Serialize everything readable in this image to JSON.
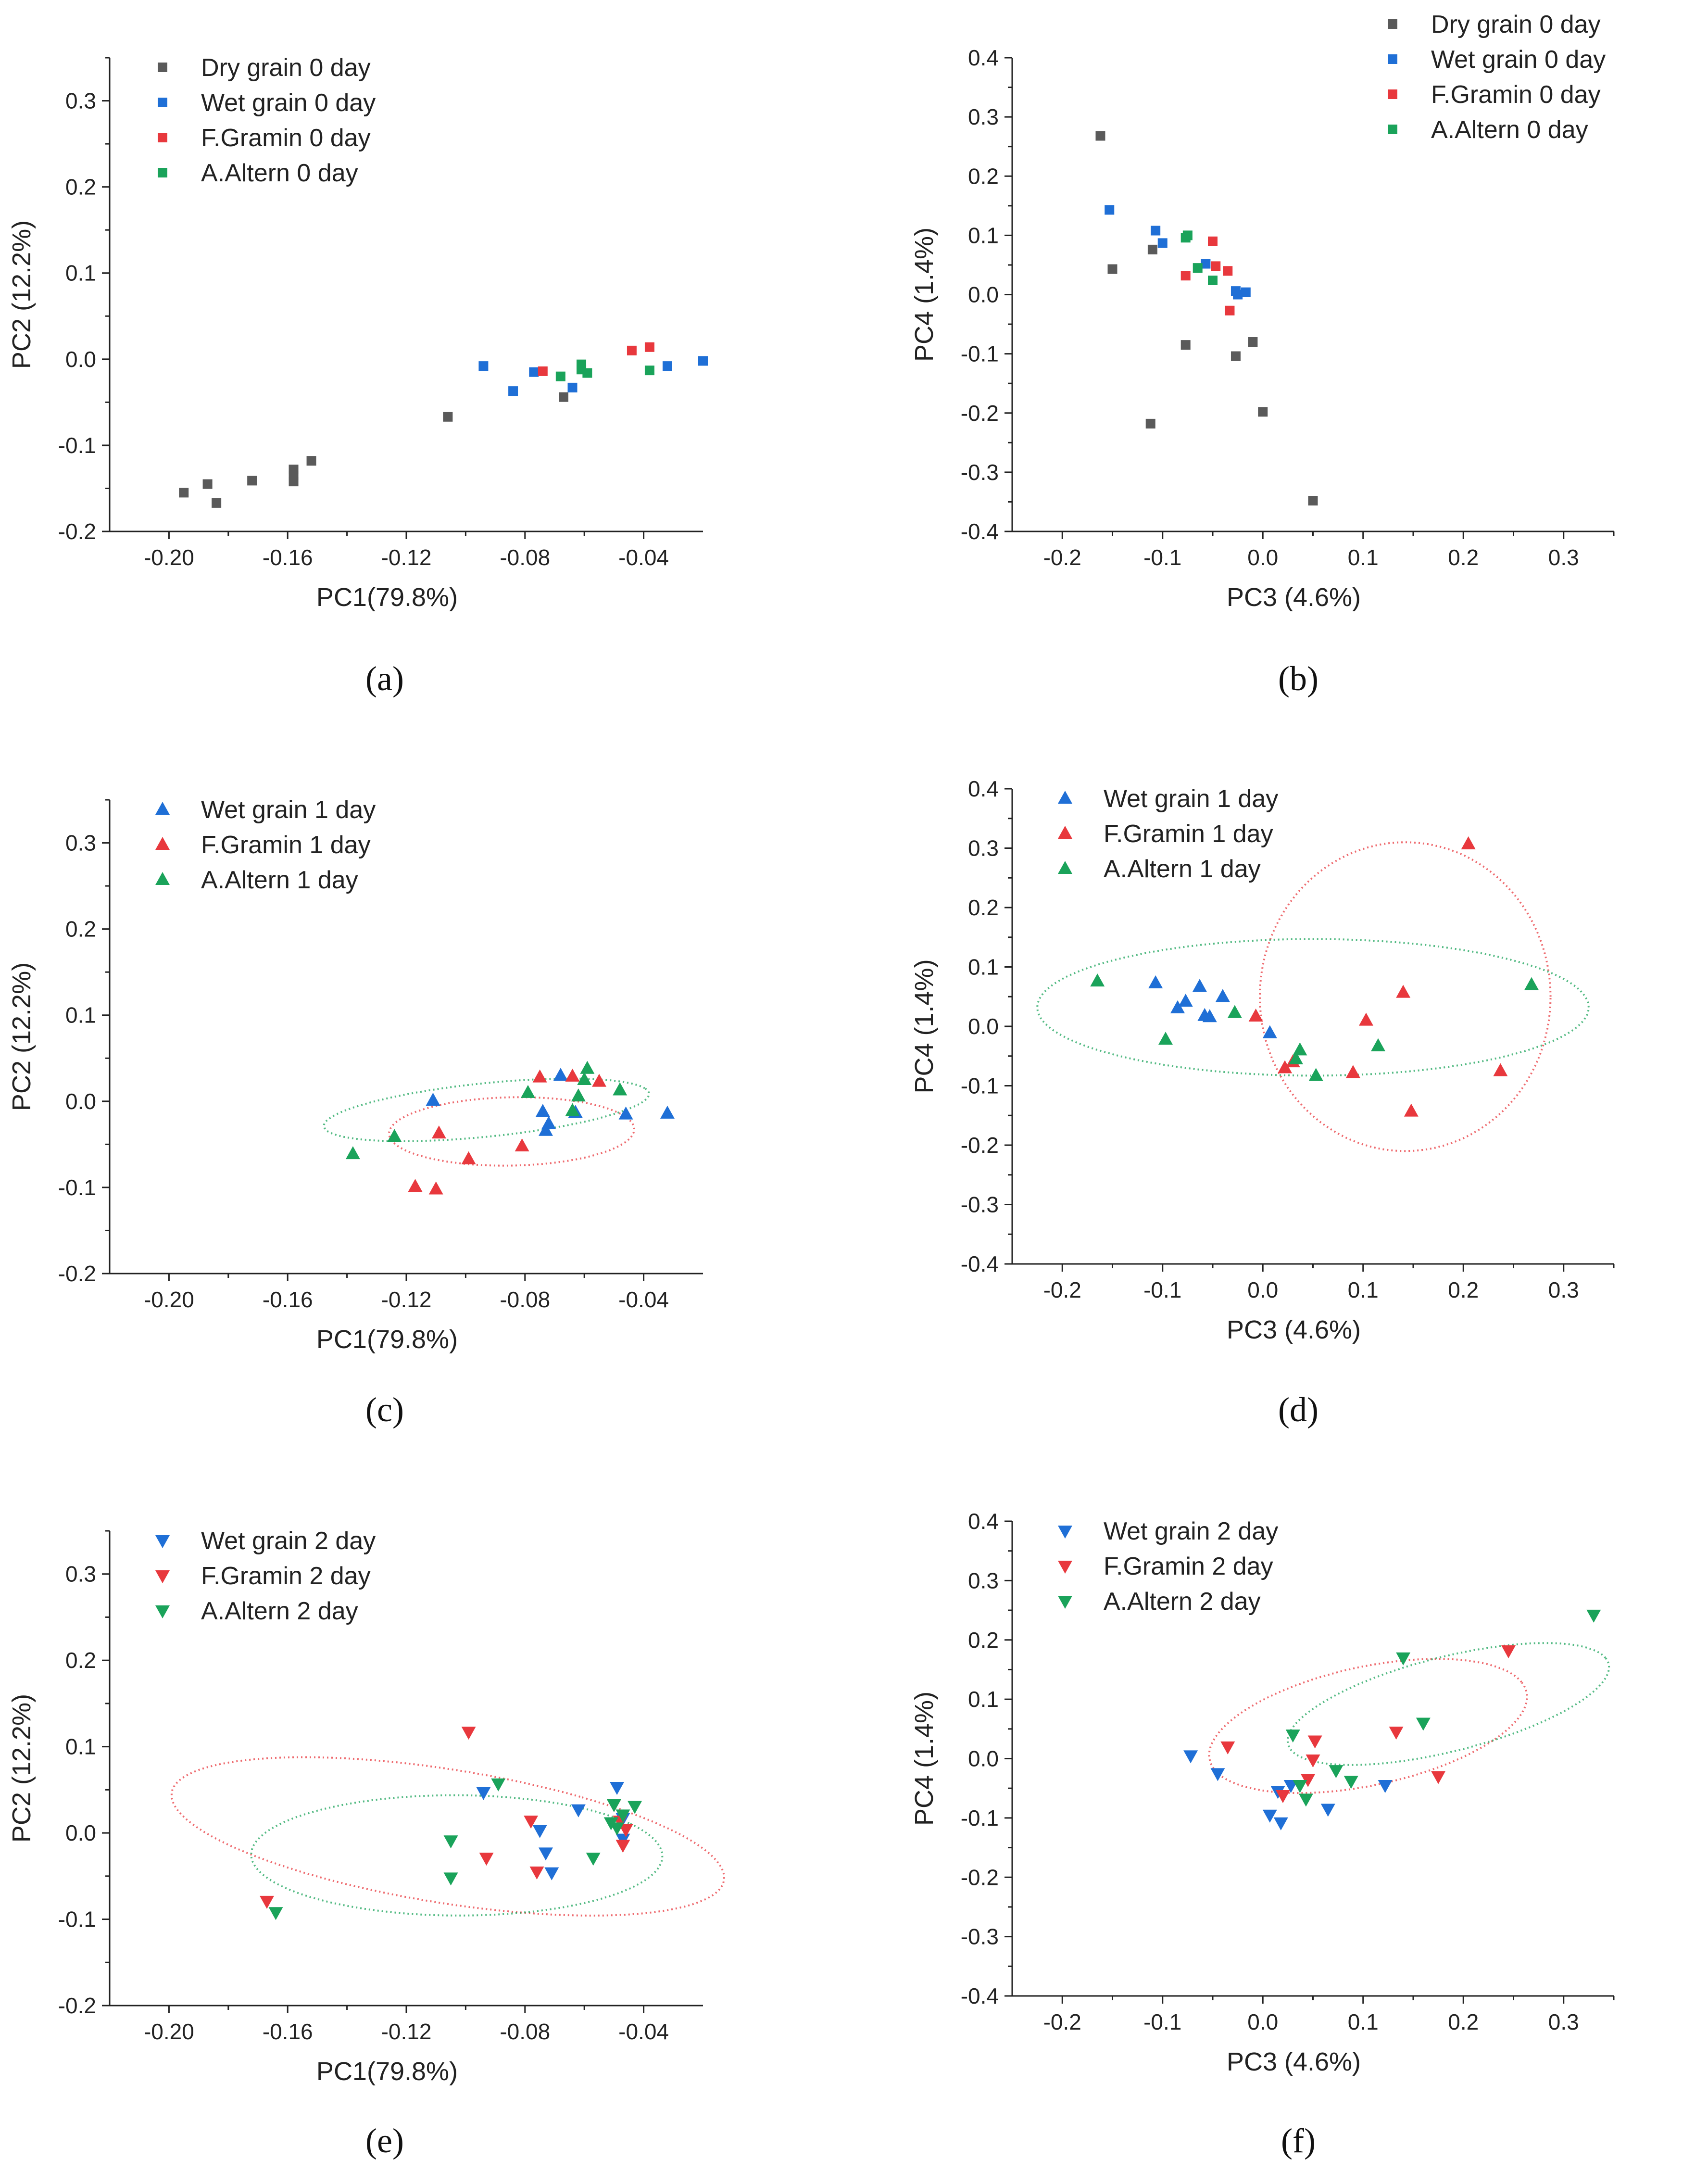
{
  "figure": {
    "panel_labels": [
      "(a)",
      "(b)",
      "(c)",
      "(d)",
      "(e)",
      "(f)"
    ]
  },
  "colors": {
    "dry": "#5a5a5a",
    "wet": "#1f6fd6",
    "fg": "#e8383d",
    "aa": "#1aa35a"
  },
  "chart_data": [
    {
      "id": "a",
      "type": "scatter",
      "marker": "square",
      "xlabel": "PC1(79.8%)",
      "ylabel": "PC2 (12.2%)",
      "xlim": [
        -0.22,
        -0.02
      ],
      "ylim": [
        -0.2,
        0.35
      ],
      "xticks": [
        -0.2,
        -0.16,
        -0.12,
        -0.08,
        -0.04
      ],
      "xtick_labels": [
        "-0.20",
        "-0.16",
        "-0.12",
        "-0.08",
        "-0.04"
      ],
      "yticks": [
        -0.2,
        -0.1,
        0.0,
        0.1,
        0.2,
        0.3
      ],
      "ytick_labels": [
        "-0.2",
        "-0.1",
        "0.0",
        "0.1",
        "0.2",
        "0.3"
      ],
      "legend_position": "top-left",
      "series": [
        {
          "name": "Dry grain 0 day",
          "color_key": "dry",
          "points": [
            [
              -0.195,
              -0.155
            ],
            [
              -0.187,
              -0.145
            ],
            [
              -0.184,
              -0.167
            ],
            [
              -0.172,
              -0.141
            ],
            [
              -0.158,
              -0.128
            ],
            [
              -0.158,
              -0.135
            ],
            [
              -0.158,
              -0.142
            ],
            [
              -0.152,
              -0.118
            ],
            [
              -0.106,
              -0.067
            ],
            [
              -0.067,
              -0.044
            ]
          ]
        },
        {
          "name": "Wet grain 0 day",
          "color_key": "wet",
          "points": [
            [
              -0.094,
              -0.008
            ],
            [
              -0.084,
              -0.037
            ],
            [
              -0.077,
              -0.015
            ],
            [
              -0.064,
              -0.033
            ],
            [
              -0.032,
              -0.008
            ],
            [
              -0.02,
              -0.002
            ]
          ]
        },
        {
          "name": "F.Gramin 0 day",
          "color_key": "fg",
          "points": [
            [
              -0.074,
              -0.014
            ],
            [
              -0.044,
              0.01
            ],
            [
              -0.038,
              0.014
            ]
          ]
        },
        {
          "name": "A.Altern 0 day",
          "color_key": "aa",
          "points": [
            [
              -0.068,
              -0.02
            ],
            [
              -0.061,
              -0.006
            ],
            [
              -0.061,
              -0.012
            ],
            [
              -0.059,
              -0.016
            ],
            [
              -0.038,
              -0.013
            ]
          ]
        }
      ]
    },
    {
      "id": "b",
      "type": "scatter",
      "marker": "square",
      "xlabel": "PC3 (4.6%)",
      "ylabel": "PC4 (1.4%)",
      "xlim": [
        -0.25,
        0.35
      ],
      "ylim": [
        -0.4,
        0.4
      ],
      "xticks": [
        -0.2,
        -0.1,
        0.0,
        0.1,
        0.2,
        0.3
      ],
      "xtick_labels": [
        "-0.2",
        "-0.1",
        "0.0",
        "0.1",
        "0.2",
        "0.3"
      ],
      "yticks": [
        -0.4,
        -0.3,
        -0.2,
        -0.1,
        0.0,
        0.1,
        0.2,
        0.3,
        0.4
      ],
      "ytick_labels": [
        "-0.4",
        "-0.3",
        "-0.2",
        "-0.1",
        "0.0",
        "0.1",
        "0.2",
        "0.3",
        "0.4"
      ],
      "legend_position": "top-right",
      "series": [
        {
          "name": "Dry grain 0 day",
          "color_key": "dry",
          "points": [
            [
              -0.162,
              0.268
            ],
            [
              -0.15,
              0.043
            ],
            [
              -0.11,
              0.076
            ],
            [
              -0.112,
              -0.218
            ],
            [
              -0.077,
              -0.085
            ],
            [
              -0.027,
              -0.104
            ],
            [
              -0.01,
              -0.08
            ],
            [
              0.0,
              -0.198
            ],
            [
              0.05,
              -0.348
            ]
          ]
        },
        {
          "name": "Wet grain 0 day",
          "color_key": "wet",
          "points": [
            [
              -0.153,
              0.143
            ],
            [
              -0.107,
              0.108
            ],
            [
              -0.1,
              0.087
            ],
            [
              -0.057,
              0.052
            ],
            [
              -0.027,
              0.006
            ],
            [
              -0.025,
              0.0
            ],
            [
              -0.017,
              0.004
            ]
          ]
        },
        {
          "name": "F.Gramin 0 day",
          "color_key": "fg",
          "points": [
            [
              -0.077,
              0.032
            ],
            [
              -0.05,
              0.09
            ],
            [
              -0.047,
              0.048
            ],
            [
              -0.035,
              0.04
            ],
            [
              -0.033,
              -0.027
            ]
          ]
        },
        {
          "name": "A.Altern 0 day",
          "color_key": "aa",
          "points": [
            [
              -0.077,
              0.096
            ],
            [
              -0.075,
              0.1
            ],
            [
              -0.065,
              0.045
            ],
            [
              -0.05,
              0.024
            ]
          ]
        }
      ]
    },
    {
      "id": "c",
      "type": "scatter",
      "marker": "triangle-up",
      "xlabel": "PC1(79.8%)",
      "ylabel": "PC2 (12.2%)",
      "xlim": [
        -0.22,
        -0.02
      ],
      "ylim": [
        -0.2,
        0.35
      ],
      "xticks": [
        -0.2,
        -0.16,
        -0.12,
        -0.08,
        -0.04
      ],
      "xtick_labels": [
        "-0.20",
        "-0.16",
        "-0.12",
        "-0.08",
        "-0.04"
      ],
      "yticks": [
        -0.2,
        -0.1,
        0.0,
        0.1,
        0.2,
        0.3
      ],
      "ytick_labels": [
        "-0.2",
        "-0.1",
        "0.0",
        "0.1",
        "0.2",
        "0.3"
      ],
      "legend_position": "top-left",
      "series": [
        {
          "name": "Wet grain 1 day",
          "color_key": "wet",
          "points": [
            [
              -0.111,
              0.001
            ],
            [
              -0.074,
              -0.012
            ],
            [
              -0.073,
              -0.034
            ],
            [
              -0.072,
              -0.026
            ],
            [
              -0.068,
              0.03
            ],
            [
              -0.063,
              -0.013
            ],
            [
              -0.046,
              -0.015
            ],
            [
              -0.032,
              -0.014
            ]
          ]
        },
        {
          "name": "F.Gramin 1 day",
          "color_key": "fg",
          "points": [
            [
              -0.117,
              -0.099
            ],
            [
              -0.11,
              -0.102
            ],
            [
              -0.109,
              -0.037
            ],
            [
              -0.099,
              -0.067
            ],
            [
              -0.081,
              -0.052
            ],
            [
              -0.075,
              0.028
            ],
            [
              -0.064,
              0.029
            ],
            [
              -0.055,
              0.023
            ]
          ]
        },
        {
          "name": "A.Altern 1 day",
          "color_key": "aa",
          "points": [
            [
              -0.138,
              -0.061
            ],
            [
              -0.124,
              -0.041
            ],
            [
              -0.079,
              0.01
            ],
            [
              -0.064,
              -0.011
            ],
            [
              -0.062,
              0.006
            ],
            [
              -0.06,
              0.025
            ],
            [
              -0.059,
              0.038
            ],
            [
              -0.048,
              0.013
            ]
          ]
        }
      ],
      "ellipses": [
        {
          "color_key": "fg",
          "cx": -0.0845,
          "cy": -0.035,
          "rx": 0.042,
          "ry": 0.039,
          "rotation": 0.51
        },
        {
          "color_key": "aa",
          "cx": -0.093,
          "cy": -0.01,
          "rx": 0.059,
          "ry": 0.029,
          "rotation": 0.44
        }
      ]
    },
    {
      "id": "d",
      "type": "scatter",
      "marker": "triangle-up",
      "xlabel": "PC3 (4.6%)",
      "ylabel": "PC4 (1.4%)",
      "xlim": [
        -0.25,
        0.35
      ],
      "ylim": [
        -0.4,
        0.4
      ],
      "xticks": [
        -0.2,
        -0.1,
        0.0,
        0.1,
        0.2,
        0.3
      ],
      "xtick_labels": [
        "-0.2",
        "-0.1",
        "0.0",
        "0.1",
        "0.2",
        "0.3"
      ],
      "yticks": [
        -0.4,
        -0.3,
        -0.2,
        -0.1,
        0.0,
        0.1,
        0.2,
        0.3,
        0.4
      ],
      "ytick_labels": [
        "-0.4",
        "-0.3",
        "-0.2",
        "-0.1",
        "0.0",
        "0.1",
        "0.2",
        "0.3",
        "0.4"
      ],
      "legend_position": "top-left",
      "series": [
        {
          "name": "Wet grain 1 day",
          "color_key": "wet",
          "points": [
            [
              -0.107,
              0.073
            ],
            [
              -0.085,
              0.031
            ],
            [
              -0.077,
              0.042
            ],
            [
              -0.063,
              0.067
            ],
            [
              -0.058,
              0.018
            ],
            [
              -0.053,
              0.016
            ],
            [
              -0.04,
              0.05
            ],
            [
              0.007,
              -0.011
            ]
          ]
        },
        {
          "name": "F.Gramin 1 day",
          "color_key": "fg",
          "points": [
            [
              -0.007,
              0.017
            ],
            [
              0.022,
              -0.07
            ],
            [
              0.03,
              -0.06
            ],
            [
              0.09,
              -0.078
            ],
            [
              0.103,
              0.01
            ],
            [
              0.14,
              0.057
            ],
            [
              0.148,
              -0.143
            ],
            [
              0.205,
              0.307
            ],
            [
              0.237,
              -0.075
            ]
          ]
        },
        {
          "name": "A.Altern 1 day",
          "color_key": "aa",
          "points": [
            [
              -0.165,
              0.076
            ],
            [
              -0.097,
              -0.022
            ],
            [
              -0.028,
              0.023
            ],
            [
              0.033,
              -0.055
            ],
            [
              0.037,
              -0.04
            ],
            [
              0.053,
              -0.083
            ],
            [
              0.115,
              -0.033
            ],
            [
              0.268,
              0.07
            ]
          ]
        }
      ],
      "ellipses": [
        {
          "color_key": "fg",
          "cx": 0.142,
          "cy": 0.05,
          "rx": 0.145,
          "ry": 0.26,
          "rotation": 0.0
        },
        {
          "color_key": "aa",
          "cx": 0.05,
          "cy": 0.032,
          "rx": 0.275,
          "ry": 0.115,
          "rotation": 0.0
        }
      ]
    },
    {
      "id": "e",
      "type": "scatter",
      "marker": "triangle-down",
      "xlabel": "PC1(79.8%)",
      "ylabel": "PC2 (12.2%)",
      "xlim": [
        -0.22,
        -0.02
      ],
      "ylim": [
        -0.2,
        0.35
      ],
      "xticks": [
        -0.2,
        -0.16,
        -0.12,
        -0.08,
        -0.04
      ],
      "xtick_labels": [
        "-0.20",
        "-0.16",
        "-0.12",
        "-0.08",
        "-0.04"
      ],
      "yticks": [
        -0.2,
        -0.1,
        0.0,
        0.1,
        0.2,
        0.3
      ],
      "ytick_labels": [
        "-0.2",
        "-0.1",
        "0.0",
        "0.1",
        "0.2",
        "0.3"
      ],
      "legend_position": "top-left",
      "series": [
        {
          "name": "Wet grain 2 day",
          "color_key": "wet",
          "points": [
            [
              -0.094,
              0.047
            ],
            [
              -0.075,
              0.003
            ],
            [
              -0.073,
              -0.023
            ],
            [
              -0.071,
              -0.046
            ],
            [
              -0.062,
              0.027
            ],
            [
              -0.049,
              0.053
            ],
            [
              -0.047,
              0.017
            ],
            [
              -0.047,
              -0.007
            ]
          ]
        },
        {
          "name": "F.Gramin 2 day",
          "color_key": "fg",
          "points": [
            [
              -0.167,
              -0.079
            ],
            [
              -0.099,
              0.117
            ],
            [
              -0.093,
              -0.029
            ],
            [
              -0.078,
              0.014
            ],
            [
              -0.076,
              -0.045
            ],
            [
              -0.05,
              0.033
            ],
            [
              -0.048,
              0.014
            ],
            [
              -0.047,
              -0.014
            ],
            [
              -0.046,
              0.004
            ]
          ]
        },
        {
          "name": "A.Altern 2 day",
          "color_key": "aa",
          "points": [
            [
              -0.164,
              -0.092
            ],
            [
              -0.105,
              -0.009
            ],
            [
              -0.105,
              -0.052
            ],
            [
              -0.089,
              0.057
            ],
            [
              -0.057,
              -0.029
            ],
            [
              -0.051,
              0.012
            ],
            [
              -0.05,
              0.033
            ],
            [
              -0.049,
              0.006
            ],
            [
              -0.047,
              0.021
            ],
            [
              -0.043,
              0.031
            ]
          ]
        }
      ],
      "ellipses": [
        {
          "color_key": "fg",
          "cx": -0.106,
          "cy": -0.004,
          "rx": 0.064,
          "ry": 0.114,
          "rotation": 0.8
        },
        {
          "color_key": "aa",
          "cx": -0.103,
          "cy": -0.026,
          "rx": 0.069,
          "ry": 0.07,
          "rotation": 0.57
        }
      ]
    },
    {
      "id": "f",
      "type": "scatter",
      "marker": "triangle-down",
      "xlabel": "PC3 (4.6%)",
      "ylabel": "PC4 (1.4%)",
      "xlim": [
        -0.25,
        0.35
      ],
      "ylim": [
        -0.4,
        0.4
      ],
      "xticks": [
        -0.2,
        -0.1,
        0.0,
        0.1,
        0.2,
        0.3
      ],
      "xtick_labels": [
        "-0.2",
        "-0.1",
        "0.0",
        "0.1",
        "0.2",
        "0.3"
      ],
      "yticks": [
        -0.4,
        -0.3,
        -0.2,
        -0.1,
        0.0,
        0.1,
        0.2,
        0.3,
        0.4
      ],
      "ytick_labels": [
        "-0.4",
        "-0.3",
        "-0.2",
        "-0.1",
        "0.0",
        "0.1",
        "0.2",
        "0.3",
        "0.4"
      ],
      "legend_position": "top-left",
      "series": [
        {
          "name": "Wet grain 2 day",
          "color_key": "wet",
          "points": [
            [
              -0.072,
              0.005
            ],
            [
              -0.045,
              -0.025
            ],
            [
              0.007,
              -0.095
            ],
            [
              0.015,
              -0.055
            ],
            [
              0.018,
              -0.108
            ],
            [
              0.028,
              -0.045
            ],
            [
              0.065,
              -0.085
            ],
            [
              0.122,
              -0.045
            ]
          ]
        },
        {
          "name": "F.Gramin 2 day",
          "color_key": "fg",
          "points": [
            [
              -0.035,
              0.02
            ],
            [
              0.02,
              -0.062
            ],
            [
              0.045,
              -0.035
            ],
            [
              0.05,
              -0.002
            ],
            [
              0.052,
              0.03
            ],
            [
              0.133,
              0.045
            ],
            [
              0.175,
              -0.03
            ],
            [
              0.245,
              0.182
            ]
          ]
        },
        {
          "name": "A.Altern 2 day",
          "color_key": "aa",
          "points": [
            [
              0.03,
              0.04
            ],
            [
              0.037,
              -0.045
            ],
            [
              0.043,
              -0.068
            ],
            [
              0.073,
              -0.02
            ],
            [
              0.088,
              -0.038
            ],
            [
              0.14,
              0.17
            ],
            [
              0.16,
              0.06
            ],
            [
              0.33,
              0.242
            ]
          ]
        }
      ],
      "ellipses": [
        {
          "color_key": "fg",
          "cx": 0.105,
          "cy": 0.055,
          "rx": 0.17,
          "ry": 0.095,
          "rotation": 0.45
        },
        {
          "color_key": "aa",
          "cx": 0.185,
          "cy": 0.092,
          "rx": 0.175,
          "ry": 0.075,
          "rotation": 0.46
        }
      ]
    }
  ]
}
